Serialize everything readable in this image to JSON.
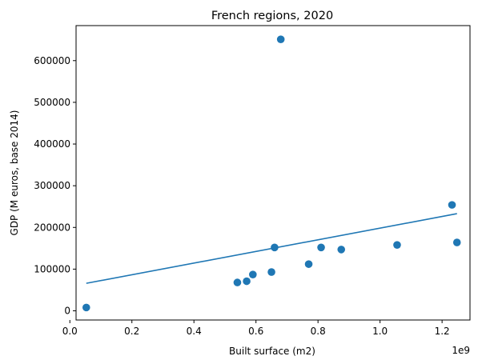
{
  "chart_data": {
    "type": "scatter",
    "title": "French regions, 2020",
    "xlabel": "Built surface (m2)",
    "ylabel": "GDP (M euros, base 2014)",
    "x_offset_label": "1e9",
    "x_scale": 1000000000,
    "xlim": [
      0.02,
      1.29
    ],
    "ylim": [
      -22000,
      684000
    ],
    "x_ticks": [
      0.0,
      0.2,
      0.4,
      0.6,
      0.8,
      1.0,
      1.2
    ],
    "x_tick_labels": [
      "0.0",
      "0.2",
      "0.4",
      "0.6",
      "0.8",
      "1.0",
      "1.2"
    ],
    "y_ticks": [
      0,
      100000,
      200000,
      300000,
      400000,
      500000,
      600000
    ],
    "y_tick_labels": [
      "0",
      "100000",
      "200000",
      "300000",
      "400000",
      "500000",
      "600000"
    ],
    "grid": false,
    "legend": false,
    "marker_color": "#1f77b4",
    "line_color": "#1f77b4",
    "series": [
      {
        "kind": "scatter",
        "points": [
          {
            "x": 0.053,
            "y": 8000
          },
          {
            "x": 0.54,
            "y": 68000
          },
          {
            "x": 0.57,
            "y": 71000
          },
          {
            "x": 0.59,
            "y": 87000
          },
          {
            "x": 0.65,
            "y": 93000
          },
          {
            "x": 0.66,
            "y": 152000
          },
          {
            "x": 0.68,
            "y": 651000
          },
          {
            "x": 0.77,
            "y": 112000
          },
          {
            "x": 0.81,
            "y": 152000
          },
          {
            "x": 0.875,
            "y": 147000
          },
          {
            "x": 1.055,
            "y": 158000
          },
          {
            "x": 1.232,
            "y": 254000
          },
          {
            "x": 1.248,
            "y": 164000
          }
        ]
      },
      {
        "kind": "line",
        "points": [
          {
            "x": 0.053,
            "y": 66000
          },
          {
            "x": 1.248,
            "y": 233000
          }
        ]
      }
    ]
  }
}
